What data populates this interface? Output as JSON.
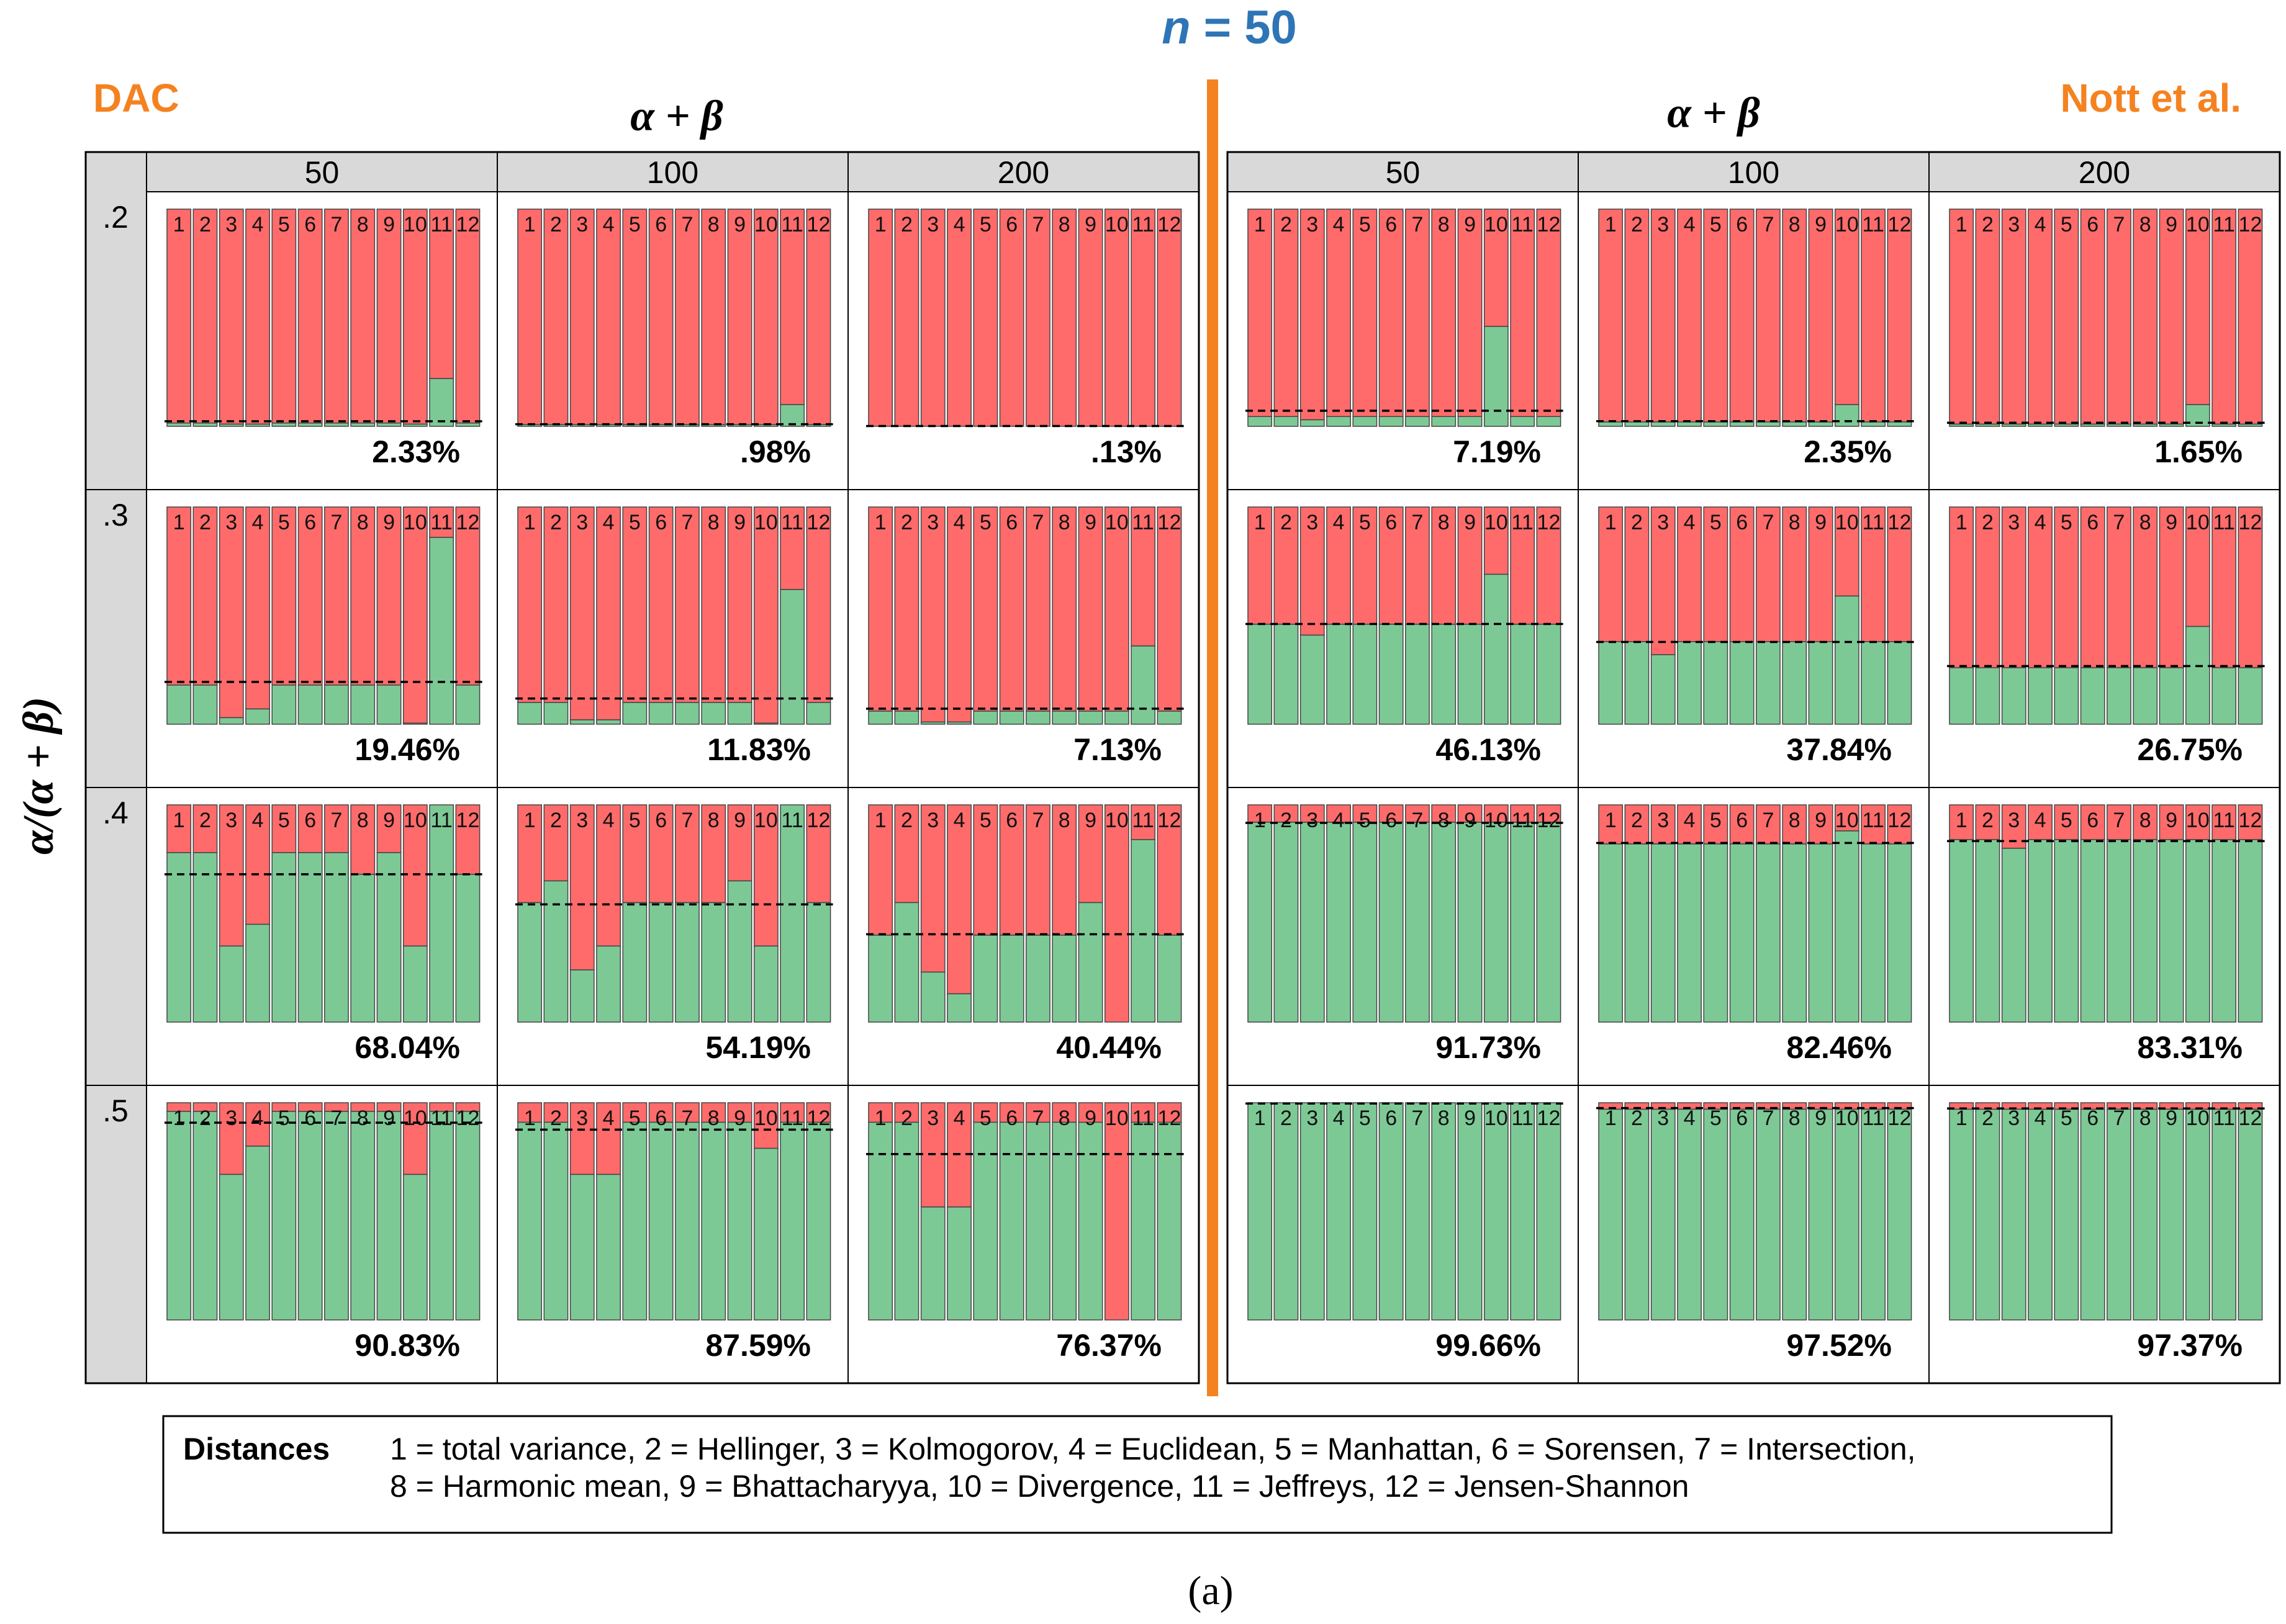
{
  "header": {
    "title_italic": "n",
    "title_rest": " = 50",
    "left_method": "DAC",
    "right_method": "Nott et al.",
    "column_axis_title": "α + β",
    "row_axis_title": "α/(α + β)"
  },
  "caption": "(a)",
  "legend": {
    "title": "Distances",
    "line1": "1 = total variance, 2 = Hellinger, 3 = Kolmogorov, 4 = Euclidean, 5 = Manhattan, 6 = Sorensen, 7 = Intersection,",
    "line2": "8 = Harmonic mean, 9 = Bhattacharyya, 10 = Divergence, 11 = Jeffreys, 12 = Jensen-Shannon"
  },
  "colors": {
    "correct": "#7dc996",
    "incorrect": "#ff6b6b",
    "accent_blue": "#2e75b6",
    "accent_orange": "#f58220",
    "header_fill": "#d9d9d9"
  },
  "chart_data": {
    "type": "bar",
    "description": "Stacked 100% bars per distance (1-12): green = share correct, red = remainder; dashed line = overall percent",
    "categories": [
      "1",
      "2",
      "3",
      "4",
      "5",
      "6",
      "7",
      "8",
      "9",
      "10",
      "11",
      "12"
    ],
    "col_values": [
      "50",
      "100",
      "200"
    ],
    "row_values": [
      ".2",
      ".3",
      ".4",
      ".5"
    ],
    "ylim": [
      0,
      100
    ],
    "panels": [
      [
        {
          "method": "DAC",
          "values": [
            1.5,
            1.5,
            1,
            1,
            1.5,
            1.5,
            1.5,
            1.5,
            1.5,
            1,
            22,
            1.5
          ],
          "label": "2.33%",
          "dashed": 2.33
        },
        {
          "method": "DAC",
          "values": [
            0.8,
            0.8,
            0.8,
            0.8,
            0.8,
            0.8,
            0.8,
            0.8,
            0.8,
            0.8,
            10,
            0.8
          ],
          "label": ".98%",
          "dashed": 0.98
        },
        {
          "method": "DAC",
          "values": [
            0,
            0,
            0,
            0,
            0,
            0,
            0,
            0,
            0,
            0,
            0,
            0
          ],
          "label": ".13%",
          "dashed": 0.13
        },
        {
          "method": "Nott et al.",
          "values": [
            4.5,
            4.5,
            3,
            4.5,
            4.5,
            4.5,
            4.5,
            4.5,
            4.5,
            46,
            4.5,
            4.5
          ],
          "label": "7.19%",
          "dashed": 7.19
        },
        {
          "method": "Nott et al.",
          "values": [
            2,
            2,
            2,
            2,
            2,
            2,
            2,
            2,
            2,
            10,
            2,
            2
          ],
          "label": "2.35%",
          "dashed": 2.35
        },
        {
          "method": "Nott et al.",
          "values": [
            1,
            1,
            1,
            1,
            1,
            1,
            1,
            1,
            1,
            10,
            1,
            1
          ],
          "label": "1.65%",
          "dashed": 1.65
        }
      ],
      [
        {
          "method": "DAC",
          "values": [
            18,
            18,
            3,
            7,
            18,
            18,
            18,
            18,
            18,
            0.5,
            86,
            18
          ],
          "label": "19.46%",
          "dashed": 19.46
        },
        {
          "method": "DAC",
          "values": [
            10,
            10,
            2,
            2,
            10,
            10,
            10,
            10,
            10,
            0.5,
            62,
            10
          ],
          "label": "11.83%",
          "dashed": 11.83
        },
        {
          "method": "DAC",
          "values": [
            6,
            6,
            1,
            1,
            6,
            6,
            6,
            6,
            6,
            6,
            36,
            6
          ],
          "label": "7.13%",
          "dashed": 7.13
        },
        {
          "method": "Nott et al.",
          "values": [
            46,
            46,
            41,
            46,
            46,
            46,
            46,
            46,
            46,
            69,
            46,
            46
          ],
          "label": "46.13%",
          "dashed": 46.13
        },
        {
          "method": "Nott et al.",
          "values": [
            38,
            38,
            32,
            38,
            38,
            38,
            38,
            38,
            38,
            59,
            38,
            38
          ],
          "label": "37.84%",
          "dashed": 37.84
        },
        {
          "method": "Nott et al.",
          "values": [
            26,
            26,
            26,
            26,
            26,
            26,
            26,
            26,
            26,
            45,
            26,
            26
          ],
          "label": "26.75%",
          "dashed": 26.75
        }
      ],
      [
        {
          "method": "DAC",
          "values": [
            78,
            78,
            35,
            45,
            78,
            78,
            78,
            68,
            78,
            35,
            100,
            68
          ],
          "label": "68.04%",
          "dashed": 68.04
        },
        {
          "method": "DAC",
          "values": [
            55,
            65,
            24,
            35,
            55,
            55,
            55,
            55,
            65,
            35,
            100,
            55
          ],
          "label": "54.19%",
          "dashed": 54.19
        },
        {
          "method": "DAC",
          "values": [
            40,
            55,
            23,
            13,
            40,
            40,
            40,
            40,
            55,
            0,
            84,
            40
          ],
          "label": "40.44%",
          "dashed": 40.44
        },
        {
          "method": "Nott et al.",
          "values": [
            92,
            92,
            92,
            92,
            92,
            92,
            92,
            92,
            92,
            92,
            92,
            92
          ],
          "label": "91.73%",
          "dashed": 91.73
        },
        {
          "method": "Nott et al.",
          "values": [
            82,
            82,
            82,
            82,
            82,
            82,
            82,
            82,
            82,
            88,
            82,
            82
          ],
          "label": "82.46%",
          "dashed": 82.46
        },
        {
          "method": "Nott et al.",
          "values": [
            84,
            84,
            80,
            84,
            84,
            84,
            84,
            84,
            84,
            84,
            84,
            84
          ],
          "label": "83.31%",
          "dashed": 83.31
        }
      ],
      [
        {
          "method": "DAC",
          "values": [
            96,
            96,
            67,
            80,
            96,
            96,
            96,
            96,
            96,
            67,
            96,
            96
          ],
          "label": "90.83%",
          "dashed": 90.83
        },
        {
          "method": "DAC",
          "values": [
            91,
            91,
            67,
            67,
            91,
            91,
            91,
            91,
            91,
            79,
            91,
            91
          ],
          "label": "87.59%",
          "dashed": 87.59
        },
        {
          "method": "DAC",
          "values": [
            91,
            91,
            52,
            52,
            91,
            91,
            91,
            91,
            91,
            0,
            91,
            91
          ],
          "label": "76.37%",
          "dashed": 76.37
        },
        {
          "method": "Nott et al.",
          "values": [
            100,
            100,
            100,
            100,
            100,
            100,
            100,
            100,
            100,
            100,
            100,
            100
          ],
          "label": "99.66%",
          "dashed": 99.66
        },
        {
          "method": "Nott et al.",
          "values": [
            97,
            97,
            97,
            97,
            97,
            97,
            97,
            97,
            97,
            97,
            97,
            97
          ],
          "label": "97.52%",
          "dashed": 97.52
        },
        {
          "method": "Nott et al.",
          "values": [
            97,
            97,
            97,
            97,
            97,
            97,
            97,
            97,
            97,
            97,
            97,
            97
          ],
          "label": "97.37%",
          "dashed": 97.37
        }
      ]
    ]
  }
}
